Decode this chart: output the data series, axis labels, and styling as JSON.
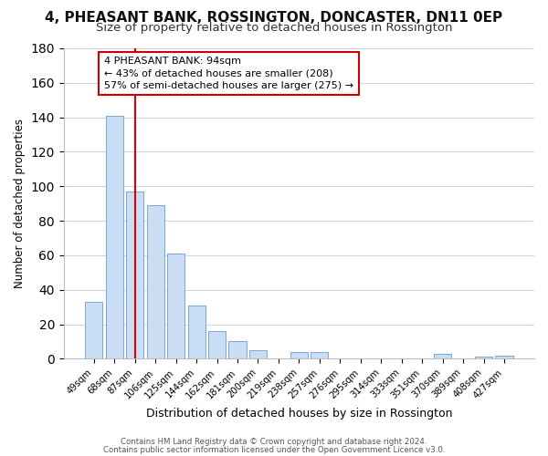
{
  "title": "4, PHEASANT BANK, ROSSINGTON, DONCASTER, DN11 0EP",
  "subtitle": "Size of property relative to detached houses in Rossington",
  "xlabel": "Distribution of detached houses by size in Rossington",
  "ylabel": "Number of detached properties",
  "bar_labels": [
    "49sqm",
    "68sqm",
    "87sqm",
    "106sqm",
    "125sqm",
    "144sqm",
    "162sqm",
    "181sqm",
    "200sqm",
    "219sqm",
    "238sqm",
    "257sqm",
    "276sqm",
    "295sqm",
    "314sqm",
    "333sqm",
    "351sqm",
    "370sqm",
    "389sqm",
    "408sqm",
    "427sqm"
  ],
  "bar_values": [
    33,
    141,
    97,
    89,
    61,
    31,
    16,
    10,
    5,
    0,
    4,
    4,
    0,
    0,
    0,
    0,
    0,
    3,
    0,
    1,
    2
  ],
  "bar_color": "#c9ddf5",
  "bar_edge_color": "#7ba7d4",
  "vline_x": 2,
  "vline_color": "#dd0000",
  "ylim": [
    0,
    180
  ],
  "yticks": [
    0,
    20,
    40,
    60,
    80,
    100,
    120,
    140,
    160,
    180
  ],
  "annotation_title": "4 PHEASANT BANK: 94sqm",
  "annotation_line1": "← 43% of detached houses are smaller (208)",
  "annotation_line2": "57% of semi-detached houses are larger (275) →",
  "footer1": "Contains HM Land Registry data © Crown copyright and database right 2024.",
  "footer2": "Contains public sector information licensed under the Open Government Licence v3.0.",
  "background_color": "#ffffff",
  "grid_color": "#c8d4e8",
  "title_fontsize": 11,
  "subtitle_fontsize": 9.5
}
